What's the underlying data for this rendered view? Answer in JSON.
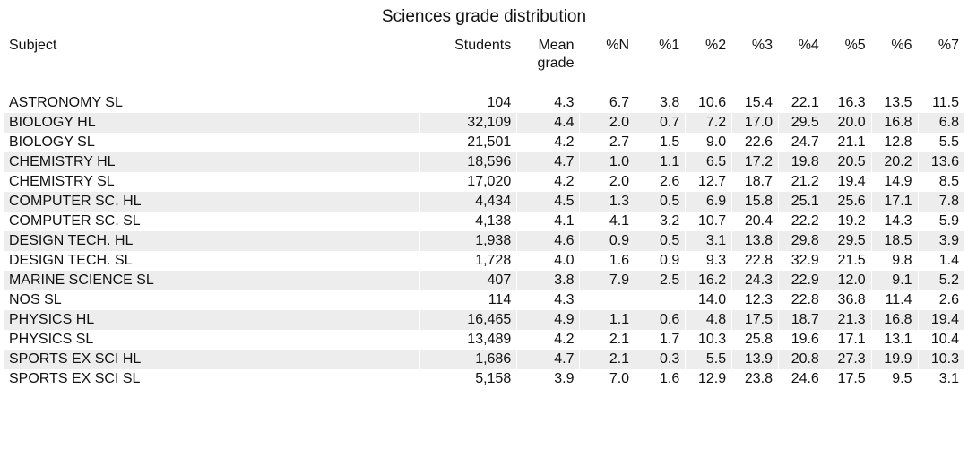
{
  "chart_data": {
    "type": "table",
    "title": "Sciences grade distribution",
    "columns": [
      "Subject",
      "Students",
      "Mean grade",
      "%N",
      "%1",
      "%2",
      "%3",
      "%4",
      "%5",
      "%6",
      "%7"
    ],
    "rows": [
      [
        "ASTRONOMY SL",
        "104",
        "4.3",
        "6.7",
        "3.8",
        "10.6",
        "15.4",
        "22.1",
        "16.3",
        "13.5",
        "11.5"
      ],
      [
        "BIOLOGY HL",
        "32,109",
        "4.4",
        "2.0",
        "0.7",
        "7.2",
        "17.0",
        "29.5",
        "20.0",
        "16.8",
        "6.8"
      ],
      [
        "BIOLOGY SL",
        "21,501",
        "4.2",
        "2.7",
        "1.5",
        "9.0",
        "22.6",
        "24.7",
        "21.1",
        "12.8",
        "5.5"
      ],
      [
        "CHEMISTRY HL",
        "18,596",
        "4.7",
        "1.0",
        "1.1",
        "6.5",
        "17.2",
        "19.8",
        "20.5",
        "20.2",
        "13.6"
      ],
      [
        "CHEMISTRY SL",
        "17,020",
        "4.2",
        "2.0",
        "2.6",
        "12.7",
        "18.7",
        "21.2",
        "19.4",
        "14.9",
        "8.5"
      ],
      [
        "COMPUTER SC. HL",
        "4,434",
        "4.5",
        "1.3",
        "0.5",
        "6.9",
        "15.8",
        "25.1",
        "25.6",
        "17.1",
        "7.8"
      ],
      [
        "COMPUTER SC. SL",
        "4,138",
        "4.1",
        "4.1",
        "3.2",
        "10.7",
        "20.4",
        "22.2",
        "19.2",
        "14.3",
        "5.9"
      ],
      [
        "DESIGN TECH. HL",
        "1,938",
        "4.6",
        "0.9",
        "0.5",
        "3.1",
        "13.8",
        "29.8",
        "29.5",
        "18.5",
        "3.9"
      ],
      [
        "DESIGN TECH. SL",
        "1,728",
        "4.0",
        "1.6",
        "0.9",
        "9.3",
        "22.8",
        "32.9",
        "21.5",
        "9.8",
        "1.4"
      ],
      [
        "MARINE SCIENCE SL",
        "407",
        "3.8",
        "7.9",
        "2.5",
        "16.2",
        "24.3",
        "22.9",
        "12.0",
        "9.1",
        "5.2"
      ],
      [
        "NOS SL",
        "114",
        "4.3",
        "",
        "",
        "14.0",
        "12.3",
        "22.8",
        "36.8",
        "11.4",
        "2.6"
      ],
      [
        "PHYSICS HL",
        "16,465",
        "4.9",
        "1.1",
        "0.6",
        "4.8",
        "17.5",
        "18.7",
        "21.3",
        "16.8",
        "19.4"
      ],
      [
        "PHYSICS SL",
        "13,489",
        "4.2",
        "2.1",
        "1.7",
        "10.3",
        "25.8",
        "19.6",
        "17.1",
        "13.1",
        "10.4"
      ],
      [
        "SPORTS EX SCI HL",
        "1,686",
        "4.7",
        "2.1",
        "0.3",
        "5.5",
        "13.9",
        "20.8",
        "27.3",
        "19.9",
        "10.3"
      ],
      [
        "SPORTS EX SCI SL",
        "5,158",
        "3.9",
        "7.0",
        "1.6",
        "12.9",
        "23.8",
        "24.6",
        "17.5",
        "9.5",
        "3.1"
      ]
    ]
  },
  "colors": {
    "header_rule": "#5a7ba8",
    "alt_row": "#ededed",
    "text": "#111111"
  }
}
